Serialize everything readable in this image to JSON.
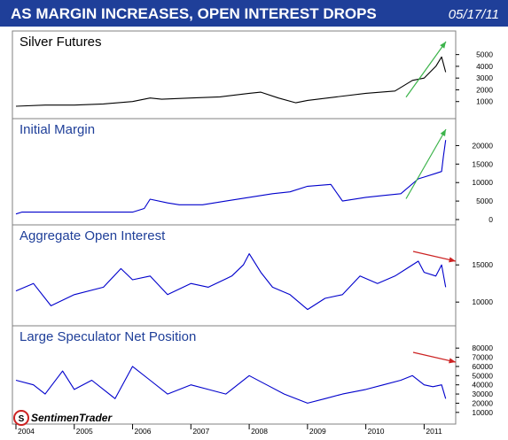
{
  "header": {
    "title": "AS MARGIN INCREASES, OPEN INTEREST DROPS",
    "date": "05/17/11",
    "bg_color": "#1f3f99"
  },
  "logo": {
    "text": "SentimenTrader"
  },
  "chart_data": [
    {
      "type": "line",
      "title": "Silver Futures",
      "color": "#000000",
      "title_color": "#000000",
      "ylim": [
        0,
        5500
      ],
      "yticks": [
        "1000",
        "2000",
        "3000",
        "4000",
        "5000"
      ],
      "ytick_values": [
        1000,
        2000,
        3000,
        4000,
        5000
      ],
      "x": [
        2004.0,
        2004.5,
        2005.0,
        2005.5,
        2006.0,
        2006.3,
        2006.5,
        2007.0,
        2007.5,
        2008.0,
        2008.2,
        2008.5,
        2008.8,
        2009.0,
        2009.5,
        2010.0,
        2010.5,
        2010.8,
        2011.0,
        2011.2,
        2011.3,
        2011.37
      ],
      "values": [
        600,
        700,
        700,
        800,
        1000,
        1300,
        1200,
        1300,
        1400,
        1700,
        1800,
        1300,
        900,
        1100,
        1400,
        1700,
        1900,
        2800,
        3000,
        4000,
        4800,
        3500
      ],
      "arrow": {
        "direction": "up",
        "color": "#3cb44b"
      }
    },
    {
      "type": "line",
      "title": "Initial Margin",
      "color": "#0000cc",
      "title_color": "#1f3f99",
      "ylim": [
        0,
        22500
      ],
      "yticks": [
        "0",
        "5000",
        "10000",
        "15000",
        "20000"
      ],
      "ytick_values": [
        0,
        5000,
        10000,
        15000,
        20000
      ],
      "x": [
        2004.0,
        2004.1,
        2006.0,
        2006.2,
        2006.3,
        2006.6,
        2006.8,
        2007.2,
        2007.6,
        2008.0,
        2008.4,
        2008.7,
        2009.0,
        2009.4,
        2009.6,
        2010.0,
        2010.3,
        2010.6,
        2010.9,
        2011.0,
        2011.2,
        2011.3,
        2011.33,
        2011.37
      ],
      "values": [
        1500,
        2000,
        2000,
        3000,
        5500,
        4500,
        4000,
        4000,
        5000,
        6000,
        7000,
        7500,
        9000,
        9500,
        5000,
        6000,
        6500,
        7000,
        11000,
        11500,
        12500,
        13000,
        17000,
        21500
      ],
      "arrow": {
        "direction": "up",
        "color": "#3cb44b"
      }
    },
    {
      "type": "line",
      "title": "Aggregate Open Interest",
      "color": "#0000cc",
      "title_color": "#1f3f99",
      "ylim": [
        8000,
        18000
      ],
      "yticks": [
        "10000",
        "15000"
      ],
      "ytick_values": [
        10000,
        15000
      ],
      "x": [
        2004.0,
        2004.3,
        2004.6,
        2005.0,
        2005.5,
        2005.8,
        2006.0,
        2006.3,
        2006.6,
        2007.0,
        2007.3,
        2007.7,
        2007.9,
        2008.0,
        2008.2,
        2008.4,
        2008.7,
        2009.0,
        2009.3,
        2009.6,
        2009.9,
        2010.2,
        2010.5,
        2010.7,
        2010.9,
        2011.0,
        2011.2,
        2011.3,
        2011.37
      ],
      "values": [
        11500,
        12500,
        9500,
        11000,
        12000,
        14500,
        13000,
        13500,
        11000,
        12500,
        12000,
        13500,
        15000,
        16500,
        14000,
        12000,
        11000,
        9000,
        10500,
        11000,
        13500,
        12500,
        13500,
        14500,
        15500,
        14000,
        13500,
        15000,
        12000
      ],
      "arrow": {
        "direction": "down",
        "color": "#cc2222"
      }
    },
    {
      "type": "line",
      "title": "Large Speculator Net Position",
      "color": "#0000cc",
      "title_color": "#1f3f99",
      "ylim": [
        5000,
        85000
      ],
      "yticks": [
        "10000",
        "20000",
        "30000",
        "40000",
        "50000",
        "60000",
        "70000",
        "80000"
      ],
      "ytick_values": [
        10000,
        20000,
        30000,
        40000,
        50000,
        60000,
        70000,
        80000
      ],
      "x": [
        2004.0,
        2004.3,
        2004.5,
        2004.8,
        2005.0,
        2005.3,
        2005.7,
        2006.0,
        2006.3,
        2006.6,
        2007.0,
        2007.3,
        2007.6,
        2008.0,
        2008.3,
        2008.6,
        2009.0,
        2009.3,
        2009.6,
        2010.0,
        2010.3,
        2010.6,
        2010.8,
        2011.0,
        2011.15,
        2011.3,
        2011.37
      ],
      "values": [
        45000,
        40000,
        30000,
        55000,
        35000,
        45000,
        25000,
        60000,
        45000,
        30000,
        40000,
        35000,
        30000,
        50000,
        40000,
        30000,
        20000,
        25000,
        30000,
        35000,
        40000,
        45000,
        50000,
        40000,
        38000,
        40000,
        25000
      ],
      "arrow": {
        "direction": "down",
        "color": "#cc2222"
      }
    }
  ],
  "x_axis": {
    "ticks": [
      "2004",
      "2005",
      "2006",
      "2007",
      "2008",
      "2009",
      "2010",
      "2011"
    ],
    "tick_values": [
      2004,
      2005,
      2006,
      2007,
      2008,
      2009,
      2010,
      2011
    ],
    "range": [
      2004.0,
      2011.45
    ]
  },
  "colors": {
    "header_bg": "#1f3f99",
    "frame": "#808080"
  }
}
